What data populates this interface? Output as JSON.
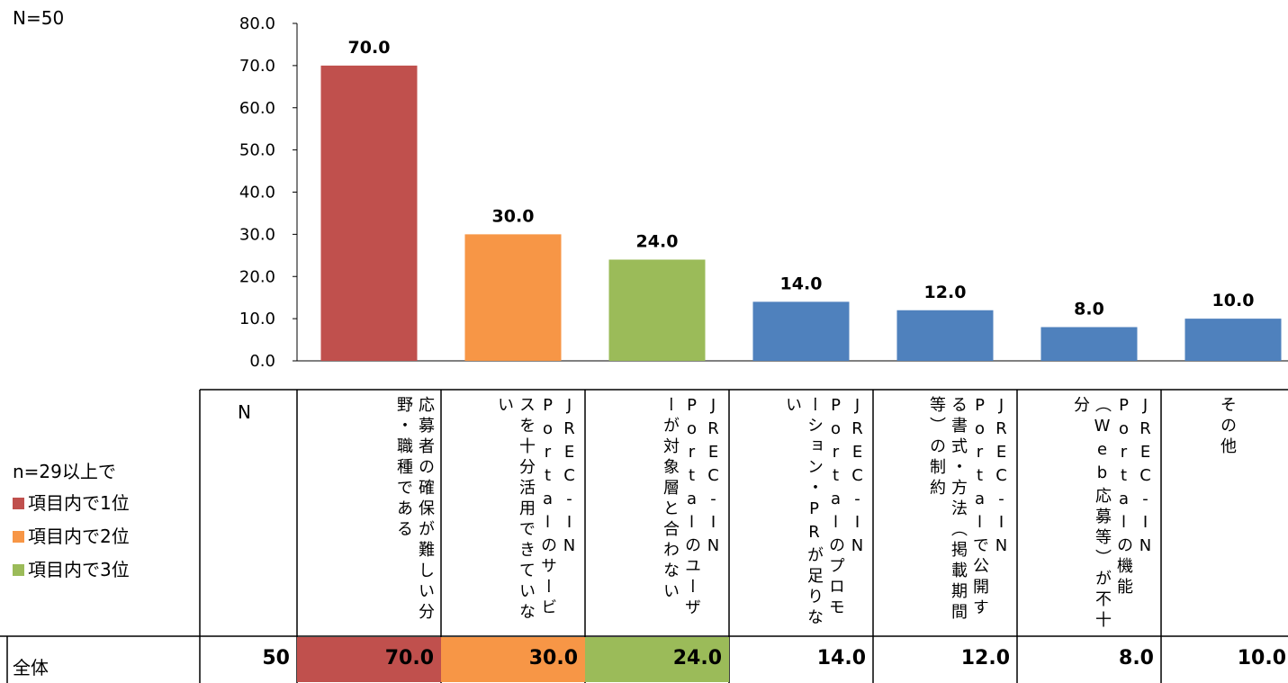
{
  "n_total_label": "N=50",
  "colors": {
    "rank1": "#C0504D",
    "rank2": "#F79646",
    "rank3": "#9BBB59",
    "default": "#4F81BD"
  },
  "legend": {
    "title": "n=29以上で",
    "items": [
      {
        "label": "項目内で1位",
        "color": "#C0504D"
      },
      {
        "label": "項目内で2位",
        "color": "#F79646"
      },
      {
        "label": "項目内で3位",
        "color": "#9BBB59"
      }
    ]
  },
  "table": {
    "n_header": "N",
    "row_label": "全体",
    "n_value": "50",
    "columns": [
      "応募者の確保が難しい分野・職種である",
      "JREC-IN Portalのサービスを十分活用できていない",
      "JREC-IN Portalのユーザーが対象層と合わない",
      "JREC-IN Portalのプロモーション・PRが足りない",
      "JREC-IN Portalで公開する書式・方法（掲載期間等）の制約",
      "JREC-IN Portalの機能（Web応募等）が不十分",
      "その他"
    ],
    "values": [
      "70.0",
      "30.0",
      "24.0",
      "14.0",
      "12.0",
      "8.0",
      "10.0"
    ]
  },
  "chart_data": {
    "type": "bar",
    "categories": [
      "応募者の確保が難しい分野・職種である",
      "JREC-IN Portalのサービスを十分活用できていない",
      "JREC-IN Portalのユーザーが対象層と合わない",
      "JREC-IN Portalのプロモーション・PRが足りない",
      "JREC-IN Portalで公開する書式・方法（掲載期間等）の制約",
      "JREC-IN Portalの機能（Web応募等）が不十分",
      "その他"
    ],
    "values": [
      70.0,
      30.0,
      24.0,
      14.0,
      12.0,
      8.0,
      10.0
    ],
    "bar_colors": [
      "#C0504D",
      "#F79646",
      "#9BBB59",
      "#4F81BD",
      "#4F81BD",
      "#4F81BD",
      "#4F81BD"
    ],
    "ylim": [
      0,
      80
    ],
    "yticks": [
      "0.0",
      "10.0",
      "20.0",
      "30.0",
      "40.0",
      "50.0",
      "60.0",
      "70.0",
      "80.0"
    ],
    "data_labels": [
      "70.0",
      "30.0",
      "24.0",
      "14.0",
      "12.0",
      "8.0",
      "10.0"
    ],
    "grid": false,
    "title": "",
    "xlabel": "",
    "ylabel": ""
  }
}
